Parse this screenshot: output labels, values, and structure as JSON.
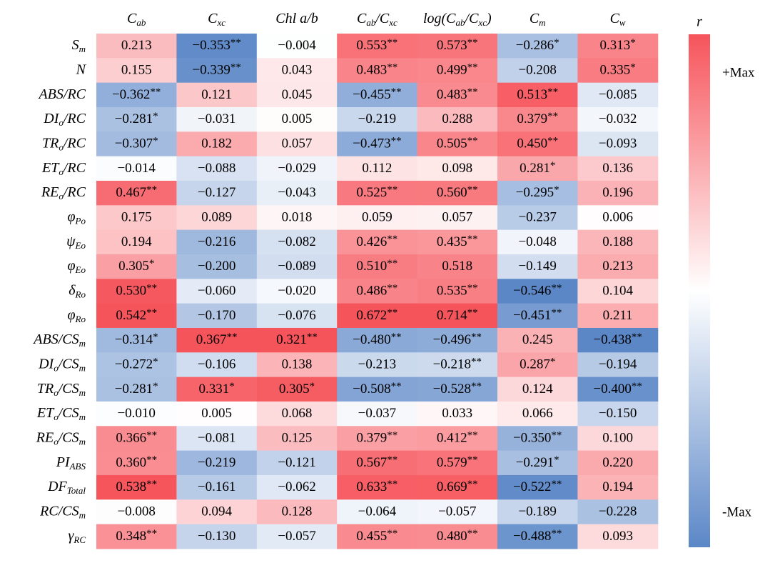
{
  "chart_data": {
    "type": "heatmap",
    "columns": [
      [
        "C",
        "ab"
      ],
      [
        "C",
        "xc"
      ],
      [
        "Chl a/b"
      ],
      [
        "C",
        "ab",
        "/C",
        "xc"
      ],
      [
        "log(C",
        "ab",
        "/C",
        "xc",
        ")"
      ],
      [
        "C",
        "m"
      ],
      [
        "C",
        "w"
      ]
    ],
    "rows": [
      [
        "S",
        "m"
      ],
      [
        "N"
      ],
      [
        "ABS/RC"
      ],
      [
        "DI",
        "o",
        "/RC"
      ],
      [
        "TR",
        "o",
        "/RC"
      ],
      [
        "ET",
        "o",
        "/RC"
      ],
      [
        "RE",
        "o",
        "/RC"
      ],
      [
        "φ",
        "Po"
      ],
      [
        "ψ",
        "Eo"
      ],
      [
        "φ",
        "Eo"
      ],
      [
        "δ",
        "Ro"
      ],
      [
        "φ",
        "Ro"
      ],
      [
        "ABS/CS",
        "m"
      ],
      [
        "DI",
        "o",
        "/CS",
        "m"
      ],
      [
        "TR",
        "o",
        "/CS",
        "m"
      ],
      [
        "ET",
        "o",
        "/CS",
        "m"
      ],
      [
        "RE",
        "o",
        "/CS",
        "m"
      ],
      [
        "PI",
        "ABS"
      ],
      [
        "DF",
        "Total"
      ],
      [
        "RC/CS",
        "m"
      ],
      [
        "γ",
        "RC"
      ]
    ],
    "values": [
      [
        0.213,
        -0.353,
        -0.004,
        0.553,
        0.573,
        -0.286,
        0.313
      ],
      [
        0.155,
        -0.339,
        0.043,
        0.483,
        0.499,
        -0.208,
        0.335
      ],
      [
        -0.362,
        0.121,
        0.045,
        -0.455,
        0.483,
        0.513,
        -0.085
      ],
      [
        -0.281,
        -0.031,
        0.005,
        -0.219,
        0.288,
        0.379,
        -0.032
      ],
      [
        -0.307,
        0.182,
        0.057,
        -0.473,
        0.505,
        0.45,
        -0.093
      ],
      [
        -0.014,
        -0.088,
        -0.029,
        0.112,
        0.098,
        0.281,
        0.136
      ],
      [
        0.467,
        -0.127,
        -0.043,
        0.525,
        0.56,
        -0.295,
        0.196
      ],
      [
        0.175,
        0.089,
        0.018,
        0.059,
        0.057,
        -0.237,
        0.006
      ],
      [
        0.194,
        -0.216,
        -0.082,
        0.426,
        0.435,
        -0.048,
        0.188
      ],
      [
        0.305,
        -0.2,
        -0.089,
        0.51,
        0.518,
        -0.149,
        0.213
      ],
      [
        0.53,
        -0.06,
        -0.02,
        0.486,
        0.535,
        -0.546,
        0.104
      ],
      [
        0.542,
        -0.17,
        -0.076,
        0.672,
        0.714,
        -0.451,
        0.211
      ],
      [
        -0.314,
        0.367,
        0.321,
        -0.48,
        -0.496,
        0.245,
        -0.438
      ],
      [
        -0.272,
        -0.106,
        0.138,
        -0.213,
        -0.218,
        0.287,
        -0.194
      ],
      [
        -0.281,
        0.331,
        0.305,
        -0.508,
        -0.528,
        0.124,
        -0.4
      ],
      [
        -0.01,
        0.005,
        0.068,
        -0.037,
        0.033,
        0.066,
        -0.15
      ],
      [
        0.366,
        -0.081,
        0.125,
        0.379,
        0.412,
        -0.35,
        0.1
      ],
      [
        0.36,
        -0.219,
        -0.121,
        0.567,
        0.579,
        -0.291,
        0.22
      ],
      [
        0.538,
        -0.161,
        -0.062,
        0.633,
        0.669,
        -0.522,
        0.194
      ],
      [
        -0.008,
        0.094,
        0.128,
        -0.064,
        -0.057,
        -0.189,
        -0.228
      ],
      [
        0.348,
        -0.13,
        -0.057,
        0.455,
        0.48,
        -0.488,
        0.093
      ]
    ],
    "value_labels": [
      [
        "0.213",
        "−0.353",
        "−0.004",
        "0.553",
        "0.573",
        "−0.286",
        "0.313"
      ],
      [
        "0.155",
        "−0.339",
        "0.043",
        "0.483",
        "0.499",
        "−0.208",
        "0.335"
      ],
      [
        "−0.362",
        "0.121",
        "0.045",
        "−0.455",
        "0.483",
        "0.513",
        "−0.085"
      ],
      [
        "−0.281",
        "−0.031",
        "0.005",
        "−0.219",
        "0.288",
        "0.379",
        "−0.032"
      ],
      [
        "−0.307",
        "0.182",
        "0.057",
        "−0.473",
        "0.505",
        "0.450",
        "−0.093"
      ],
      [
        "−0.014",
        "−0.088",
        "−0.029",
        "0.112",
        "0.098",
        "0.281",
        "0.136"
      ],
      [
        "0.467",
        "−0.127",
        "−0.043",
        "0.525",
        "0.560",
        "−0.295",
        "0.196"
      ],
      [
        "0.175",
        "0.089",
        "0.018",
        "0.059",
        "0.057",
        "−0.237",
        "0.006"
      ],
      [
        "0.194",
        "−0.216",
        "−0.082",
        "0.426",
        "0.435",
        "−0.048",
        "0.188"
      ],
      [
        "0.305",
        "−0.200",
        "−0.089",
        "0.510",
        "0.518",
        "−0.149",
        "0.213"
      ],
      [
        "0.530",
        "−0.060",
        "−0.020",
        "0.486",
        "0.535",
        "−0.546",
        "0.104"
      ],
      [
        "0.542",
        "−0.170",
        "−0.076",
        "0.672",
        "0.714",
        "−0.451",
        "0.211"
      ],
      [
        "−0.314",
        "0.367",
        "0.321",
        "−0.480",
        "−0.496",
        "0.245",
        "−0.438"
      ],
      [
        "−0.272",
        "−0.106",
        "0.138",
        "−0.213",
        "−0.218",
        "0.287",
        "−0.194"
      ],
      [
        "−0.281",
        "0.331",
        "0.305",
        "−0.508",
        "−0.528",
        "0.124",
        "−0.400"
      ],
      [
        "−0.010",
        "0.005",
        "0.068",
        "−0.037",
        "0.033",
        "0.066",
        "−0.150"
      ],
      [
        "0.366",
        "−0.081",
        "0.125",
        "0.379",
        "0.412",
        "−0.350",
        "0.100"
      ],
      [
        "0.360",
        "−0.219",
        "−0.121",
        "0.567",
        "0.579",
        "−0.291",
        "0.220"
      ],
      [
        "0.538",
        "−0.161",
        "−0.062",
        "0.633",
        "0.669",
        "−0.522",
        "0.194"
      ],
      [
        "−0.008",
        "0.094",
        "0.128",
        "−0.064",
        "−0.057",
        "−0.189",
        "−0.228"
      ],
      [
        "0.348",
        "−0.130",
        "−0.057",
        "0.455",
        "0.480",
        "−0.488",
        "0.093"
      ]
    ],
    "stars": [
      [
        null,
        "**",
        null,
        "**",
        "**",
        "*",
        "*"
      ],
      [
        null,
        "**",
        null,
        "**",
        "**",
        null,
        "*"
      ],
      [
        "**",
        null,
        null,
        "**",
        "**",
        "**",
        null
      ],
      [
        "*",
        null,
        null,
        null,
        null,
        "**",
        null
      ],
      [
        "*",
        null,
        null,
        "**",
        "**",
        "**",
        null
      ],
      [
        null,
        null,
        null,
        null,
        null,
        "*",
        null
      ],
      [
        "**",
        null,
        null,
        "**",
        "**",
        "*",
        null
      ],
      [
        null,
        null,
        null,
        null,
        null,
        null,
        null
      ],
      [
        null,
        null,
        null,
        "**",
        "**",
        null,
        null
      ],
      [
        "*",
        null,
        null,
        "**",
        null,
        null,
        null
      ],
      [
        "**",
        null,
        null,
        "**",
        "**",
        "**",
        null
      ],
      [
        "**",
        null,
        null,
        "**",
        "**",
        "**",
        null
      ],
      [
        "*",
        "**",
        "**",
        "**",
        "**",
        null,
        "**"
      ],
      [
        "*",
        null,
        null,
        null,
        "**",
        "*",
        null
      ],
      [
        "*",
        "*",
        "*",
        "**",
        "**",
        null,
        "**"
      ],
      [
        null,
        null,
        null,
        null,
        null,
        null,
        null
      ],
      [
        "**",
        null,
        null,
        "**",
        "**",
        "**",
        null
      ],
      [
        "**",
        null,
        null,
        "**",
        "**",
        "*",
        null
      ],
      [
        "**",
        null,
        null,
        "**",
        "**",
        "**",
        null
      ],
      [
        null,
        null,
        null,
        null,
        null,
        null,
        null
      ],
      [
        "**",
        null,
        null,
        "**",
        "**",
        "**",
        null
      ]
    ],
    "colors": {
      "high": "#f6545b",
      "mid": "#ffffff",
      "low": "#5b87c7"
    },
    "colorbar": {
      "title": "r",
      "max_label": "+Max",
      "min_label": "-Max"
    }
  }
}
